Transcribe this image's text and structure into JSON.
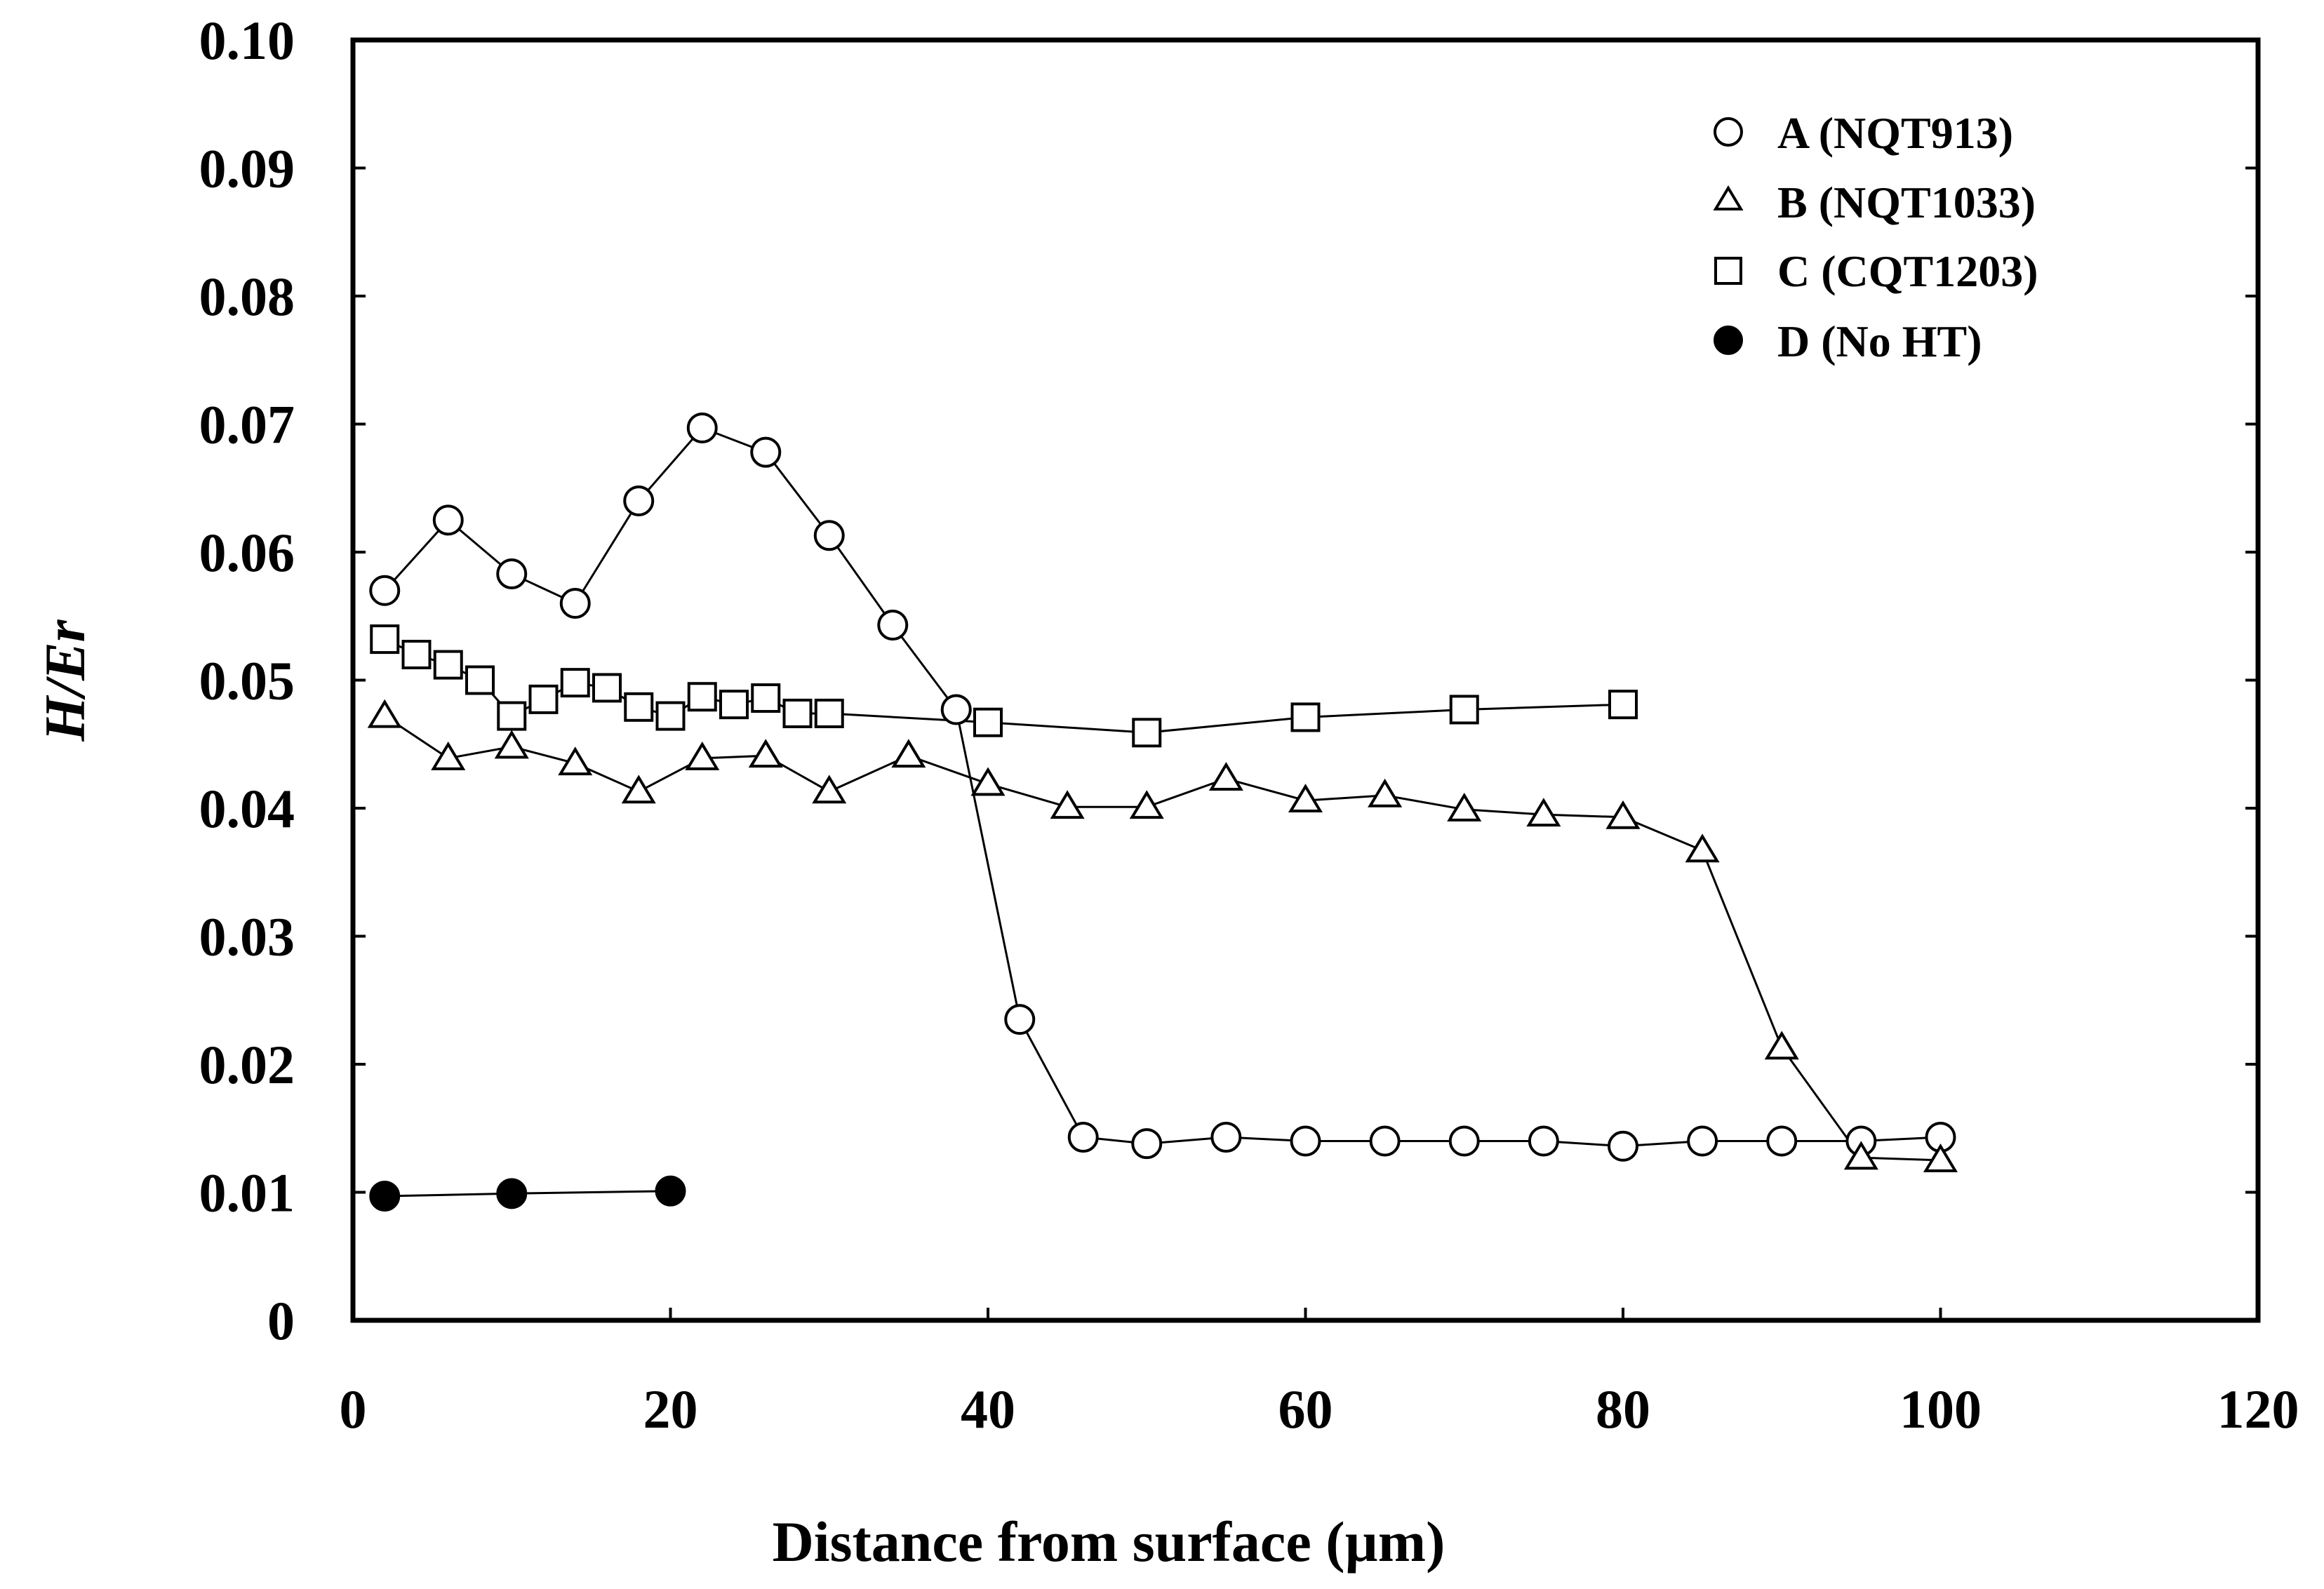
{
  "chart_data": {
    "type": "scatter",
    "title": "",
    "xlabel": "Distance from surface (µm)",
    "ylabel": "H/Er",
    "xlim": [
      0,
      120
    ],
    "ylim": [
      0,
      0.1
    ],
    "grid": false,
    "legend_position": "top-right",
    "x_ticks": [
      "0",
      "20",
      "40",
      "60",
      "80",
      "100",
      "120"
    ],
    "y_ticks": [
      "0",
      "0.01",
      "0.02",
      "0.03",
      "0.04",
      "0.05",
      "0.06",
      "0.07",
      "0.08",
      "0.09",
      "0.10"
    ],
    "series": [
      {
        "name": "A (NQT913)",
        "marker": "circle-open",
        "x": [
          2,
          6,
          10,
          14,
          18,
          22,
          26,
          30,
          34,
          38,
          42,
          46,
          50,
          55,
          60,
          65,
          70,
          75,
          80,
          85,
          90,
          95,
          100
        ],
        "y": [
          0.057,
          0.0625,
          0.0583,
          0.056,
          0.064,
          0.0697,
          0.0678,
          0.0613,
          0.0543,
          0.0477,
          0.0235,
          0.0143,
          0.0138,
          0.0143,
          0.014,
          0.014,
          0.014,
          0.014,
          0.0136,
          0.014,
          0.014,
          0.014,
          0.0143
        ]
      },
      {
        "name": "B (NQT1033)",
        "marker": "triangle-open",
        "x": [
          2,
          6,
          10,
          14,
          18,
          22,
          26,
          30,
          35,
          40,
          45,
          50,
          55,
          60,
          65,
          70,
          75,
          80,
          85,
          90,
          95,
          100
        ],
        "y": [
          0.0472,
          0.0439,
          0.0448,
          0.0435,
          0.0413,
          0.0439,
          0.0441,
          0.0413,
          0.0441,
          0.0419,
          0.0401,
          0.0401,
          0.0423,
          0.0406,
          0.041,
          0.0399,
          0.0395,
          0.0393,
          0.0367,
          0.0213,
          0.0127,
          0.0125
        ]
      },
      {
        "name": "C (CQT1203)",
        "marker": "square-open",
        "x": [
          2,
          4,
          6,
          8,
          10,
          12,
          14,
          16,
          18,
          20,
          22,
          24,
          26,
          28,
          30,
          40,
          50,
          60,
          70,
          80
        ],
        "y": [
          0.0532,
          0.052,
          0.0512,
          0.05,
          0.0472,
          0.0485,
          0.0498,
          0.0494,
          0.0479,
          0.0472,
          0.0487,
          0.0481,
          0.0486,
          0.0474,
          0.0474,
          0.0467,
          0.0459,
          0.0471,
          0.0477,
          0.0481
        ]
      },
      {
        "name": "D (No HT)",
        "marker": "circle-filled",
        "x": [
          2,
          10,
          20
        ],
        "y": [
          0.0097,
          0.0099,
          0.0101
        ]
      }
    ]
  }
}
